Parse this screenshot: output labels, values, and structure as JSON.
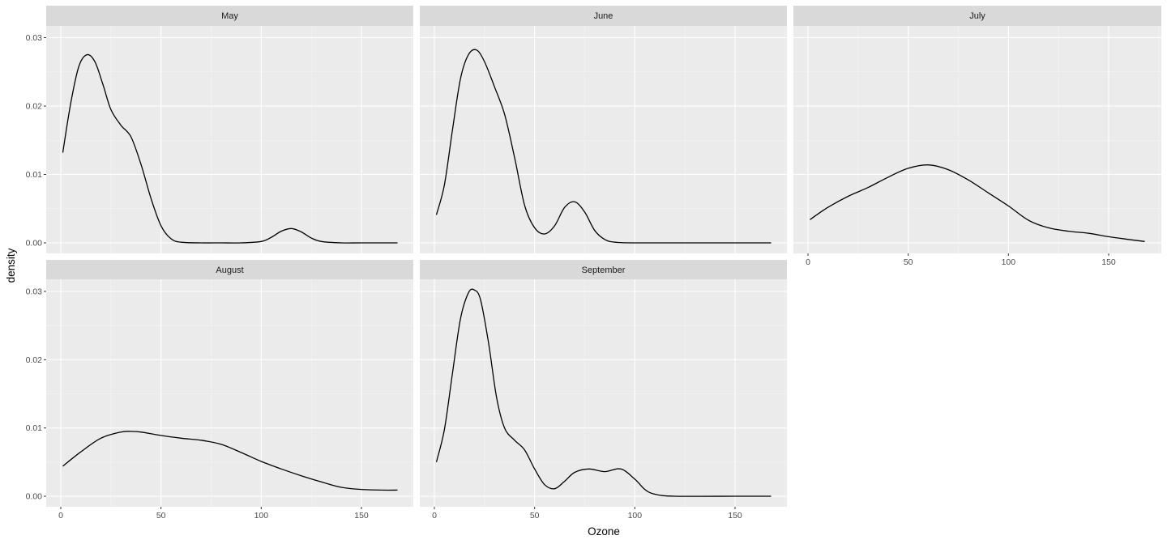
{
  "chart_data": {
    "type": "line",
    "subtype": "density-facets",
    "title": "",
    "xlabel": "Ozone",
    "ylabel": "density",
    "xlim": [
      -6,
      176
    ],
    "ylim": [
      -0.0015,
      0.0317
    ],
    "x_ticks": [
      0,
      50,
      100,
      150
    ],
    "x_tick_labels": [
      "0",
      "50",
      "100",
      "150"
    ],
    "y_ticks": [
      0.0,
      0.01,
      0.02,
      0.03
    ],
    "y_tick_labels": [
      "0.00",
      "0.01",
      "0.02",
      "0.03"
    ],
    "grid": true,
    "legend": "none",
    "facets": [
      {
        "name": "May",
        "x": [
          1,
          5,
          9,
          13,
          17,
          21,
          25,
          30,
          35,
          40,
          45,
          50,
          55,
          60,
          70,
          80,
          90,
          100,
          105,
          110,
          115,
          120,
          125,
          130,
          140,
          150,
          168
        ],
        "values": [
          0.0132,
          0.0205,
          0.0258,
          0.0275,
          0.0265,
          0.0232,
          0.0195,
          0.0172,
          0.0155,
          0.0115,
          0.0065,
          0.0025,
          0.0006,
          0.0001,
          0.0,
          0.0,
          0.0,
          0.0002,
          0.0008,
          0.0017,
          0.0021,
          0.0016,
          0.0007,
          0.0002,
          0.0,
          0.0,
          0.0
        ]
      },
      {
        "name": "June",
        "x": [
          1,
          5,
          9,
          13,
          17,
          21,
          25,
          30,
          35,
          40,
          45,
          50,
          55,
          60,
          65,
          70,
          75,
          80,
          85,
          90,
          100,
          120,
          150,
          168
        ],
        "values": [
          0.0041,
          0.0085,
          0.0165,
          0.024,
          0.0275,
          0.0282,
          0.0265,
          0.0228,
          0.0188,
          0.0125,
          0.0055,
          0.0022,
          0.0013,
          0.0025,
          0.0052,
          0.006,
          0.0045,
          0.0018,
          0.0005,
          0.0001,
          0.0,
          0.0,
          0.0,
          0.0
        ]
      },
      {
        "name": "July",
        "x": [
          1,
          10,
          20,
          30,
          40,
          50,
          60,
          70,
          80,
          90,
          100,
          110,
          120,
          130,
          140,
          150,
          160,
          168
        ],
        "values": [
          0.0034,
          0.0052,
          0.0068,
          0.0081,
          0.0096,
          0.0109,
          0.0114,
          0.0107,
          0.0092,
          0.0073,
          0.0054,
          0.0033,
          0.0022,
          0.0017,
          0.0014,
          0.0009,
          0.0005,
          0.0002
        ]
      },
      {
        "name": "August",
        "x": [
          1,
          10,
          20,
          30,
          35,
          40,
          50,
          60,
          70,
          80,
          90,
          100,
          110,
          120,
          130,
          140,
          150,
          160,
          168
        ],
        "values": [
          0.0044,
          0.0065,
          0.0085,
          0.0094,
          0.0095,
          0.0094,
          0.0089,
          0.0085,
          0.0082,
          0.0076,
          0.0064,
          0.0051,
          0.004,
          0.003,
          0.0021,
          0.0013,
          0.001,
          0.0009,
          0.0009
        ]
      },
      {
        "name": "September",
        "x": [
          1,
          5,
          9,
          13,
          17,
          20,
          23,
          27,
          31,
          35,
          40,
          45,
          50,
          55,
          60,
          65,
          70,
          77,
          85,
          93,
          100,
          105,
          110,
          120,
          150,
          168
        ],
        "values": [
          0.005,
          0.0098,
          0.018,
          0.026,
          0.0298,
          0.0302,
          0.0288,
          0.0225,
          0.0145,
          0.01,
          0.0082,
          0.0068,
          0.004,
          0.0017,
          0.0011,
          0.0022,
          0.0035,
          0.004,
          0.0036,
          0.004,
          0.0025,
          0.001,
          0.0003,
          0.0,
          0.0,
          0.0
        ]
      }
    ]
  },
  "strips": [
    "May",
    "June",
    "July",
    "August",
    "September"
  ],
  "axes": {
    "x_title": "Ozone",
    "y_title": "density"
  },
  "colors": {
    "panel_bg": "#ebebeb",
    "strip_bg": "#d9d9d9",
    "grid_major": "#ffffff",
    "line": "#000000",
    "tick_text": "#4d4d4d"
  }
}
